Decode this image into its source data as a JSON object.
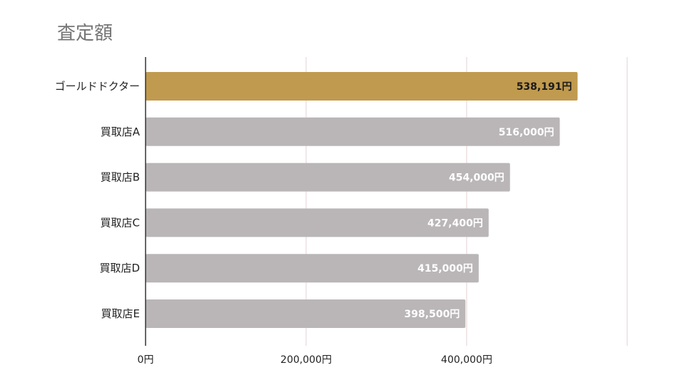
{
  "chart_data": {
    "type": "bar",
    "orientation": "horizontal",
    "title": "査定額",
    "xlabel": "",
    "ylabel": "",
    "categories": [
      "ゴールドドクター",
      "買取店A",
      "買取店B",
      "買取店C",
      "買取店D",
      "買取店E"
    ],
    "values": [
      538191,
      516000,
      454000,
      427400,
      415000,
      398500
    ],
    "data_labels": [
      "538,191円",
      "516,000円",
      "454,000円",
      "427,400円",
      "415,000円",
      "398,500円"
    ],
    "xlim": [
      0,
      600000
    ],
    "x_ticks": [
      0,
      200000,
      400000
    ],
    "x_tick_labels": [
      "0円",
      "200,000円",
      "400,000円"
    ],
    "grid": true,
    "legend": "none",
    "colors": {
      "highlight": "#c09a4e",
      "default": "#bab6b8",
      "highlight_label": "#1a1a1a",
      "default_label": "#ffffff",
      "grid": "#e3d2d6",
      "axis": "#333333",
      "title": "#757575"
    }
  }
}
